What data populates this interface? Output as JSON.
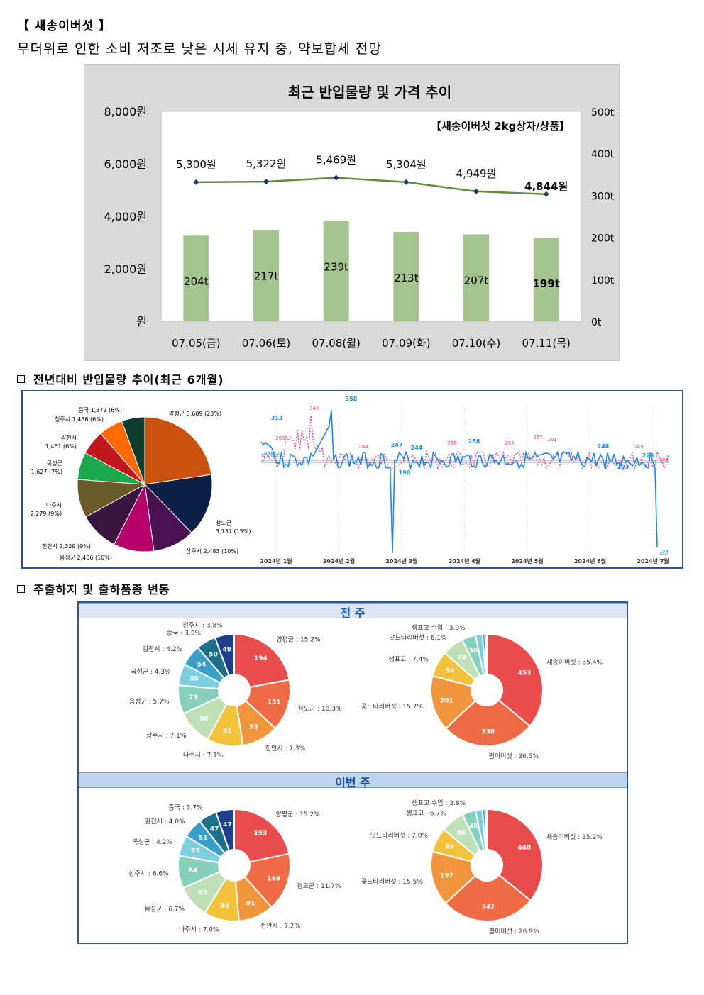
{
  "header": {
    "title": "【 새송이버섯 】",
    "subtitle": "무더위로 인한 소비 저조로 낮은 시세 유지 중, 약보합세 전망"
  },
  "price_chart": {
    "title": "최근 반입물량 및 가격 추이",
    "unit_note": "【새송이버섯 2kg상자/상품】"
  },
  "section2": {
    "heading": "전년대비 반입물량 추이(최근 6개월)"
  },
  "section3": {
    "heading": "주출하지 및 출하품종 변동",
    "prev_week": "전 주",
    "this_week": "이번 주"
  },
  "colors": {
    "bar": "#a3c48e",
    "line": "#5a8f3c",
    "marker": "#1f3864",
    "blue": "#1e88e5",
    "pink": "#e040a0"
  },
  "chart_data": [
    {
      "type": "bar",
      "name_ref": "price_chart",
      "categories": [
        "07.05(금)",
        "07.06(토)",
        "07.08(월)",
        "07.09(화)",
        "07.10(수)",
        "07.11(목)"
      ],
      "series": [
        {
          "values": [
            204,
            217,
            239,
            213,
            207,
            199
          ],
          "labels": [
            "204t",
            "217t",
            "239t",
            "213t",
            "207t",
            "199t"
          ]
        },
        {
          "type": "line",
          "values": [
            5300,
            5322,
            5469,
            5304,
            4949,
            4844
          ],
          "labels": [
            "5,300원",
            "5,322원",
            "5,469원",
            "5,304원",
            "4,949원",
            "4,844원"
          ]
        }
      ],
      "y_left_ticks": [
        "8,000원",
        "6,000원",
        "4,000원",
        "2,000원",
        "원"
      ],
      "y_left_lim": [
        0,
        8000
      ],
      "y_right_ticks": [
        "500t",
        "400t",
        "300t",
        "200t",
        "100t",
        "0t"
      ],
      "y_right_lim": [
        0,
        500
      ]
    },
    {
      "type": "pie",
      "slices": [
        {
          "label": "양평군 5,609 (23%)",
          "value": 5609,
          "color": "#c9520f"
        },
        {
          "label": "청도군 3,737 (15%)",
          "value": 3737,
          "color": "#0d2147"
        },
        {
          "label": "상주시 2,483 (10%)",
          "value": 2483,
          "color": "#4a1250"
        },
        {
          "label": "음성군 2,406 (10%)",
          "value": 2406,
          "color": "#b5006a"
        },
        {
          "label": "천안시 2,329 (9%)",
          "value": 2329,
          "color": "#3a1540"
        },
        {
          "label": "나주시 2,279 (9%)",
          "value": 2279,
          "color": "#6b5a2a"
        },
        {
          "label": "곡성군 1,627 (7%)",
          "value": 1627,
          "color": "#1aa84a"
        },
        {
          "label": "김천시 1,461 (6%)",
          "value": 1461,
          "color": "#c0161e"
        },
        {
          "label": "청주시 1,436 (6%)",
          "value": 1436,
          "color": "#ff6a00"
        },
        {
          "label": "중국 1,372 (6%)",
          "value": 1372,
          "color": "#0f3d30"
        }
      ]
    },
    {
      "type": "line",
      "x_ticks": [
        "2024년 1월",
        "2024년 2월",
        "2024년 3월",
        "2024년 4월",
        "2024년 5월",
        "2024년 6월",
        "2024년 7월"
      ],
      "series": [
        {
          "name": "금년",
          "annotations": [
            "313",
            "358",
            "247",
            "190",
            "244",
            "258",
            "248",
            "228",
            "193"
          ]
        },
        {
          "name": "전년",
          "annotations": [
            "340",
            "260",
            "244",
            "256",
            "256",
            "267",
            "261",
            "249"
          ]
        }
      ],
      "baseline_label": "금년평균"
    },
    {
      "type": "pie",
      "week": "전 주",
      "donuts": [
        {
          "slices": [
            {
              "label": "양평군 : 15.2%",
              "value": 194,
              "color": "#e84c4c"
            },
            {
              "label": "청도군 : 10.3%",
              "value": 131,
              "color": "#ee6b45"
            },
            {
              "label": "천안시 : 7.3%",
              "value": 93,
              "color": "#f0953b"
            },
            {
              "label": "나주시 : 7.1%",
              "value": 91,
              "color": "#f2c23a"
            },
            {
              "label": "상주시 : 7.1%",
              "value": 90,
              "color": "#bfe0b5"
            },
            {
              "label": "음성군 : 5.7%",
              "value": 73,
              "color": "#86d0bb"
            },
            {
              "label": "곡성군 : 4.3%",
              "value": 55,
              "color": "#7dcfe0"
            },
            {
              "label": "김천시 : 4.2%",
              "value": 54,
              "color": "#3aa0c8"
            },
            {
              "label": "중국 : 3.9%",
              "value": 50,
              "color": "#1e6f8a"
            },
            {
              "label": "청주시 : 3.8%",
              "value": 49,
              "color": "#1c3e8c"
            }
          ]
        },
        {
          "slices": [
            {
              "label": "새송이버섯 : 35.4%",
              "value": 453,
              "color": "#e84c4c"
            },
            {
              "label": "평이버섯 : 26.5%",
              "value": 338,
              "color": "#ee6b45"
            },
            {
              "label": "꽃느타리버섯 : 15.7%",
              "value": 201,
              "color": "#f0953b"
            },
            {
              "label": "생표고 : 7.4%",
              "value": 94,
              "color": "#f2c23a"
            },
            {
              "label": "맛느타리버섯 : 6.1%",
              "value": 78,
              "color": "#bfe0b5"
            },
            {
              "label": "생표고 수입 : 3.9%",
              "value": 50,
              "color": "#86d0bb"
            },
            {
              "label": "",
              "value": 25,
              "color": "#7dcfe0"
            },
            {
              "label": "",
              "value": 10,
              "color": "#3aa0c8"
            },
            {
              "label": "",
              "value": 6,
              "color": "#1e6f8a"
            }
          ]
        }
      ]
    },
    {
      "type": "pie",
      "week": "이번 주",
      "donuts": [
        {
          "slices": [
            {
              "label": "양평군 : 15.2%",
              "value": 193,
              "color": "#e84c4c"
            },
            {
              "label": "청도군 : 11.7%",
              "value": 149,
              "color": "#ee6b45"
            },
            {
              "label": "천안시 : 7.2%",
              "value": 91,
              "color": "#f0953b"
            },
            {
              "label": "나주시 : 7.0%",
              "value": 90,
              "color": "#f2c23a"
            },
            {
              "label": "음성군 : 6.7%",
              "value": 85,
              "color": "#bfe0b5"
            },
            {
              "label": "상주시 : 6.6%",
              "value": 84,
              "color": "#86d0bb"
            },
            {
              "label": "곡성군 : 4.2%",
              "value": 53,
              "color": "#7dcfe0"
            },
            {
              "label": "김천시 : 4.0%",
              "value": 51,
              "color": "#3aa0c8"
            },
            {
              "label": "중국 : 3.7%",
              "value": 47,
              "color": "#1e6f8a"
            },
            {
              "label": "",
              "value": 47,
              "color": "#1c3e8c"
            }
          ]
        },
        {
          "slices": [
            {
              "label": "새송이버섯 : 35.2%",
              "value": 448,
              "color": "#e84c4c"
            },
            {
              "label": "평이버섯 : 26.9%",
              "value": 342,
              "color": "#ee6b45"
            },
            {
              "label": "꽃느타리버섯 : 15.5%",
              "value": 197,
              "color": "#f0953b"
            },
            {
              "label": "맛느타리버섯 : 7.0%",
              "value": 89,
              "color": "#f2c23a"
            },
            {
              "label": "생표고 : 6.7%",
              "value": 86,
              "color": "#bfe0b5"
            },
            {
              "label": "생표고 수입 : 3.8%",
              "value": 48,
              "color": "#86d0bb"
            },
            {
              "label": "",
              "value": 25,
              "color": "#7dcfe0"
            },
            {
              "label": "",
              "value": 10,
              "color": "#3aa0c8"
            },
            {
              "label": "",
              "value": 6,
              "color": "#1e6f8a"
            }
          ]
        }
      ]
    }
  ]
}
